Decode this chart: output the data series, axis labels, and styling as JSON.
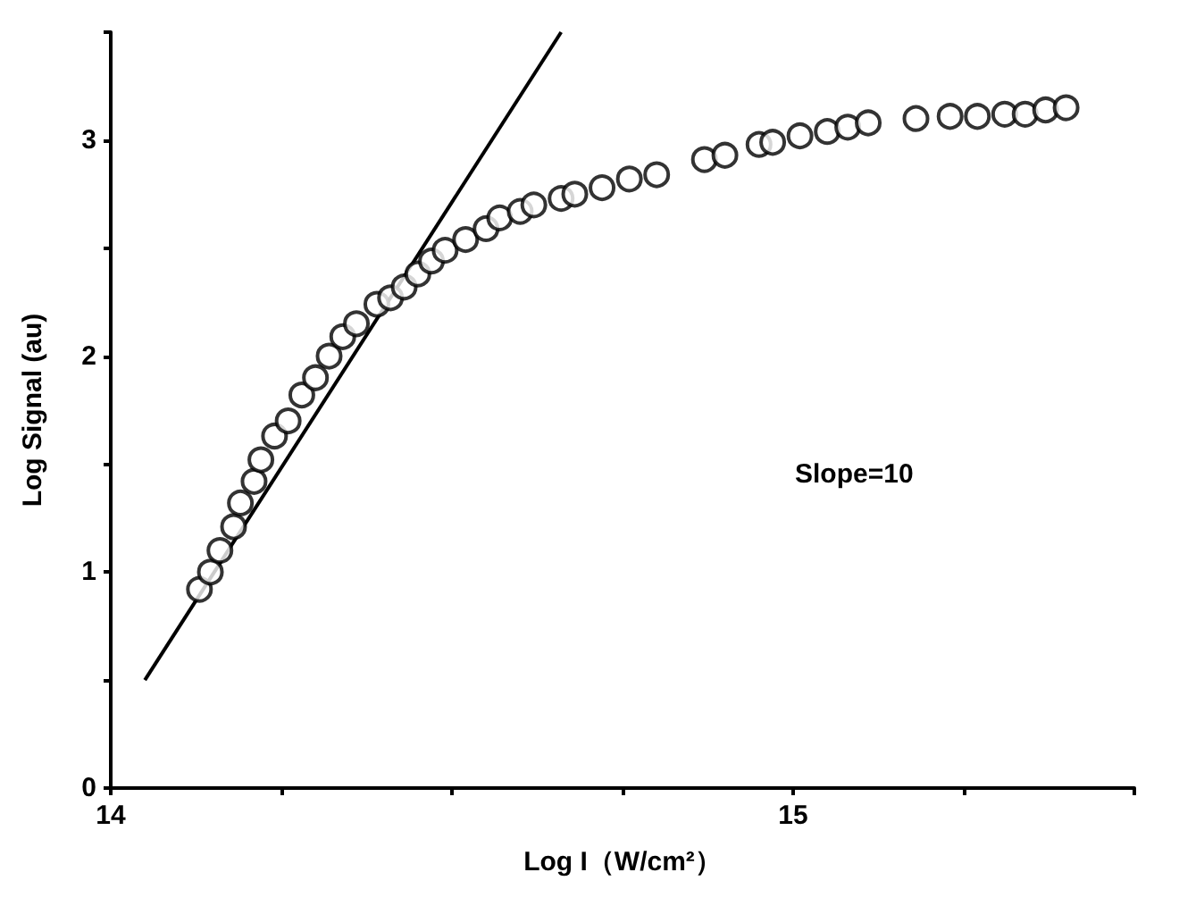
{
  "chart_data": {
    "type": "scatter",
    "xlabel": "Log I（W/cm²）",
    "ylabel": "Log Signal (au)",
    "annotations": [
      "Slope=10"
    ],
    "xlim": [
      14,
      15.5
    ],
    "ylim": [
      0,
      3.5
    ],
    "xticks": [
      14,
      {
        "value": 14.25,
        "label": null
      },
      {
        "value": 14.5,
        "label": null
      },
      {
        "value": 14.75,
        "label": null
      },
      15,
      {
        "value": 15.25,
        "label": null
      },
      {
        "value": 15.5,
        "label": null
      }
    ],
    "yticks": [
      0,
      {
        "value": 0.5,
        "label": null
      },
      1,
      {
        "value": 1.5,
        "label": null
      },
      2,
      {
        "value": 2.5,
        "label": null
      },
      3,
      {
        "value": 3.5,
        "label": null
      }
    ],
    "grid": false,
    "marker": "circle",
    "series": [
      {
        "color": "#000000",
        "x": [
          14.13,
          14.146,
          14.16,
          14.18,
          14.19,
          14.21,
          14.22,
          14.24,
          14.26,
          14.28,
          14.3,
          14.32,
          14.34,
          14.36,
          14.39,
          14.41,
          14.43,
          14.45,
          14.47,
          14.49,
          14.52,
          14.55,
          14.57,
          14.6,
          14.62,
          14.66,
          14.68,
          14.72,
          14.76,
          14.8,
          14.87,
          14.9,
          14.95,
          14.97,
          15.01,
          15.05,
          15.08,
          15.11,
          15.18,
          15.23,
          15.27,
          15.31,
          15.34,
          15.37,
          15.4
        ],
        "values": [
          0.92,
          1.0,
          1.1,
          1.21,
          1.32,
          1.42,
          1.52,
          1.63,
          1.7,
          1.82,
          1.9,
          2.0,
          2.09,
          2.15,
          2.24,
          2.27,
          2.32,
          2.38,
          2.44,
          2.49,
          2.54,
          2.59,
          2.64,
          2.67,
          2.7,
          2.73,
          2.75,
          2.78,
          2.82,
          2.84,
          2.91,
          2.93,
          2.98,
          2.99,
          3.02,
          3.04,
          3.06,
          3.08,
          3.1,
          3.11,
          3.11,
          3.12,
          3.12,
          3.14,
          3.15
        ]
      },
      {
        "type": "line",
        "color": "#000000",
        "marker": "none",
        "line_style": "solid",
        "x": [
          14.05,
          14.66
        ],
        "values": [
          0.5,
          3.5
        ]
      }
    ]
  }
}
